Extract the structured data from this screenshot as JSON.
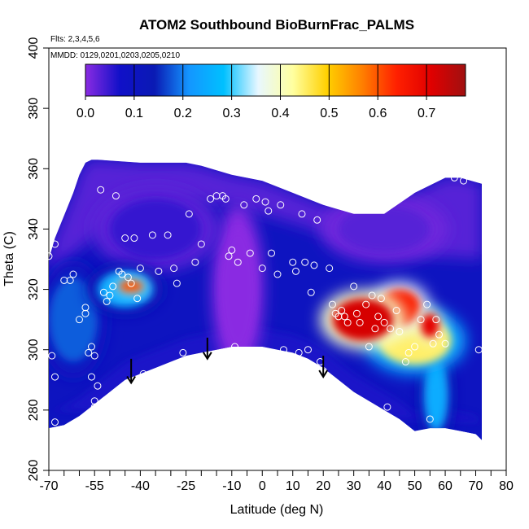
{
  "chart_data": {
    "type": "heatmap",
    "title": "ATOM2 Southbound BioBurnFrac_PALMS",
    "subtitle_lines": [
      "Flts: 2,3,4,5,6",
      "MMDD: 0129,0201,0203,0205,0210"
    ],
    "xlabel": "Latitude (deg N)",
    "ylabel": "Theta (C)",
    "xlim": [
      -70,
      80
    ],
    "ylim": [
      260,
      400
    ],
    "x_ticks": [
      -70,
      -55,
      -40,
      -25,
      -10,
      0,
      10,
      20,
      30,
      40,
      50,
      60,
      70,
      80
    ],
    "x_tick_labels": [
      "-70",
      "-55",
      "-40",
      "-25",
      "-10",
      "0",
      "10",
      "20",
      "30",
      "40",
      "50",
      "60",
      "70",
      "80"
    ],
    "x_minor_ticks": [
      -65,
      -60,
      -50,
      -45,
      -35,
      -30,
      -20,
      -15,
      -5,
      5,
      15,
      25,
      35,
      45,
      55,
      65,
      75
    ],
    "y_ticks": [
      260,
      280,
      300,
      320,
      340,
      360,
      380,
      400
    ],
    "y_tick_labels": [
      "260",
      "280",
      "300",
      "320",
      "340",
      "360",
      "380",
      "400"
    ],
    "colorbar": {
      "range": [
        0.0,
        0.78
      ],
      "ticks": [
        0.0,
        0.1,
        0.2,
        0.3,
        0.4,
        0.5,
        0.6,
        0.7
      ],
      "tick_labels": [
        "0.0",
        "0.1",
        "0.2",
        "0.3",
        "0.4",
        "0.5",
        "0.6",
        "0.7"
      ],
      "colors": [
        "#8a2be2",
        "#1010c8",
        "#0a1ab4",
        "#1496ff",
        "#00c0ff",
        "#e8f7ff",
        "#ffffa0",
        "#ffd000",
        "#ff8000",
        "#ff2000",
        "#e00000",
        "#a01010"
      ]
    },
    "field_boundary_top": [
      [
        -70,
        330
      ],
      [
        -68,
        337
      ],
      [
        -66,
        342
      ],
      [
        -64,
        347
      ],
      [
        -62,
        352
      ],
      [
        -60,
        358
      ],
      [
        -58,
        362
      ],
      [
        -56,
        363
      ],
      [
        -54,
        363
      ],
      [
        -40,
        362
      ],
      [
        -25,
        362
      ],
      [
        -20,
        361
      ],
      [
        -10,
        358
      ],
      [
        0,
        356
      ],
      [
        10,
        352
      ],
      [
        20,
        348
      ],
      [
        30,
        345
      ],
      [
        40,
        345
      ],
      [
        50,
        352
      ],
      [
        60,
        357
      ],
      [
        65,
        357
      ],
      [
        72,
        355
      ]
    ],
    "field_boundary_bottom": [
      [
        72,
        270
      ],
      [
        70,
        272
      ],
      [
        65,
        273
      ],
      [
        60,
        274
      ],
      [
        55,
        274
      ],
      [
        50,
        273
      ],
      [
        45,
        277
      ],
      [
        40,
        280
      ],
      [
        35,
        283
      ],
      [
        30,
        286
      ],
      [
        25,
        290
      ],
      [
        20,
        294
      ],
      [
        15,
        297
      ],
      [
        10,
        299
      ],
      [
        5,
        300
      ],
      [
        0,
        301
      ],
      [
        -5,
        301
      ],
      [
        -10,
        301
      ],
      [
        -15,
        300
      ],
      [
        -20,
        299
      ],
      [
        -25,
        298
      ],
      [
        -30,
        296
      ],
      [
        -35,
        294
      ],
      [
        -40,
        292
      ],
      [
        -45,
        290
      ],
      [
        -50,
        286
      ],
      [
        -55,
        282
      ],
      [
        -60,
        278
      ],
      [
        -65,
        275
      ],
      [
        -70,
        274
      ]
    ],
    "hotspots": [
      {
        "lat": 33,
        "theta": 310,
        "value": 0.72,
        "rx_deg": 10,
        "ry_theta": 7
      },
      {
        "lat": 45,
        "theta": 314,
        "value": 0.65,
        "rx_deg": 7,
        "ry_theta": 6
      },
      {
        "lat": 55,
        "theta": 308,
        "value": 0.7,
        "rx_deg": 3,
        "ry_theta": 4
      },
      {
        "lat": 50,
        "theta": 303,
        "value": 0.45,
        "rx_deg": 12,
        "ry_theta": 8
      },
      {
        "lat": -43,
        "theta": 321,
        "value": 0.6,
        "rx_deg": 4,
        "ry_theta": 2
      },
      {
        "lat": -45,
        "theta": 320,
        "value": 0.25,
        "rx_deg": 9,
        "ry_theta": 6
      },
      {
        "lat": -62,
        "theta": 310,
        "value": 0.18,
        "rx_deg": 8,
        "ry_theta": 14
      },
      {
        "lat": 57,
        "theta": 285,
        "value": 0.25,
        "rx_deg": 4,
        "ry_theta": 12
      },
      {
        "lat": -35,
        "theta": 340,
        "value": 0.05,
        "rx_deg": 15,
        "ry_theta": 10
      },
      {
        "lat": 40,
        "theta": 340,
        "value": 0.03,
        "rx_deg": 15,
        "ry_theta": 8
      },
      {
        "lat": -8,
        "theta": 320,
        "value": 0.0,
        "rx_deg": 6,
        "ry_theta": 20
      }
    ],
    "arrows": [
      {
        "lat": -43,
        "theta_top": 297,
        "theta_bottom": 289
      },
      {
        "lat": -18,
        "theta_top": 304,
        "theta_bottom": 297
      },
      {
        "lat": 20,
        "theta_top": 298,
        "theta_bottom": 291
      }
    ],
    "sample_points": [
      [
        -70,
        331
      ],
      [
        -68,
        335
      ],
      [
        -69,
        298
      ],
      [
        -68,
        291
      ],
      [
        -68,
        276
      ],
      [
        -65,
        323
      ],
      [
        -63,
        323
      ],
      [
        -62,
        325
      ],
      [
        -60,
        310
      ],
      [
        -58,
        314
      ],
      [
        -58,
        312
      ],
      [
        -56,
        301
      ],
      [
        -55,
        298
      ],
      [
        -55,
        283
      ],
      [
        -55,
        281
      ],
      [
        -56,
        291
      ],
      [
        -57,
        299
      ],
      [
        -54,
        288
      ],
      [
        -53,
        353
      ],
      [
        -52,
        319
      ],
      [
        -51,
        316
      ],
      [
        -50,
        318
      ],
      [
        -49,
        321
      ],
      [
        -48,
        351
      ],
      [
        -47,
        326
      ],
      [
        -46,
        325
      ],
      [
        -45,
        337
      ],
      [
        -44,
        324
      ],
      [
        -43,
        322
      ],
      [
        -42,
        337
      ],
      [
        -41,
        317
      ],
      [
        -40,
        327
      ],
      [
        -39,
        292
      ],
      [
        -38,
        290
      ],
      [
        -36,
        338
      ],
      [
        -34,
        326
      ],
      [
        -33,
        293
      ],
      [
        -31,
        338
      ],
      [
        -29,
        327
      ],
      [
        -28,
        322
      ],
      [
        -26,
        299
      ],
      [
        -24,
        345
      ],
      [
        -22,
        329
      ],
      [
        -20,
        335
      ],
      [
        -19,
        295
      ],
      [
        -17,
        350
      ],
      [
        -15,
        351
      ],
      [
        -13,
        351
      ],
      [
        -12,
        350
      ],
      [
        -11,
        331
      ],
      [
        -10,
        333
      ],
      [
        -9,
        301
      ],
      [
        -8,
        329
      ],
      [
        -6,
        348
      ],
      [
        -4,
        332
      ],
      [
        -2,
        350
      ],
      [
        0,
        327
      ],
      [
        1,
        349
      ],
      [
        2,
        346
      ],
      [
        3,
        332
      ],
      [
        5,
        325
      ],
      [
        6,
        348
      ],
      [
        7,
        300
      ],
      [
        10,
        329
      ],
      [
        11,
        326
      ],
      [
        12,
        299
      ],
      [
        13,
        345
      ],
      [
        14,
        329
      ],
      [
        15,
        300
      ],
      [
        16,
        319
      ],
      [
        17,
        328
      ],
      [
        18,
        343
      ],
      [
        19,
        296
      ],
      [
        20,
        293
      ],
      [
        21,
        289
      ],
      [
        22,
        327
      ],
      [
        23,
        315
      ],
      [
        24,
        312
      ],
      [
        25,
        311
      ],
      [
        26,
        313
      ],
      [
        27,
        311
      ],
      [
        28,
        309
      ],
      [
        30,
        321
      ],
      [
        31,
        312
      ],
      [
        32,
        309
      ],
      [
        34,
        315
      ],
      [
        35,
        301
      ],
      [
        36,
        318
      ],
      [
        37,
        307
      ],
      [
        38,
        311
      ],
      [
        39,
        317
      ],
      [
        40,
        309
      ],
      [
        41,
        281
      ],
      [
        42,
        307
      ],
      [
        43,
        276
      ],
      [
        44,
        313
      ],
      [
        45,
        306
      ],
      [
        46,
        273
      ],
      [
        47,
        296
      ],
      [
        48,
        299
      ],
      [
        50,
        301
      ],
      [
        52,
        310
      ],
      [
        54,
        315
      ],
      [
        55,
        277
      ],
      [
        56,
        302
      ],
      [
        57,
        310
      ],
      [
        58,
        305
      ],
      [
        60,
        302
      ],
      [
        63,
        357
      ],
      [
        66,
        356
      ],
      [
        71,
        300
      ]
    ]
  }
}
